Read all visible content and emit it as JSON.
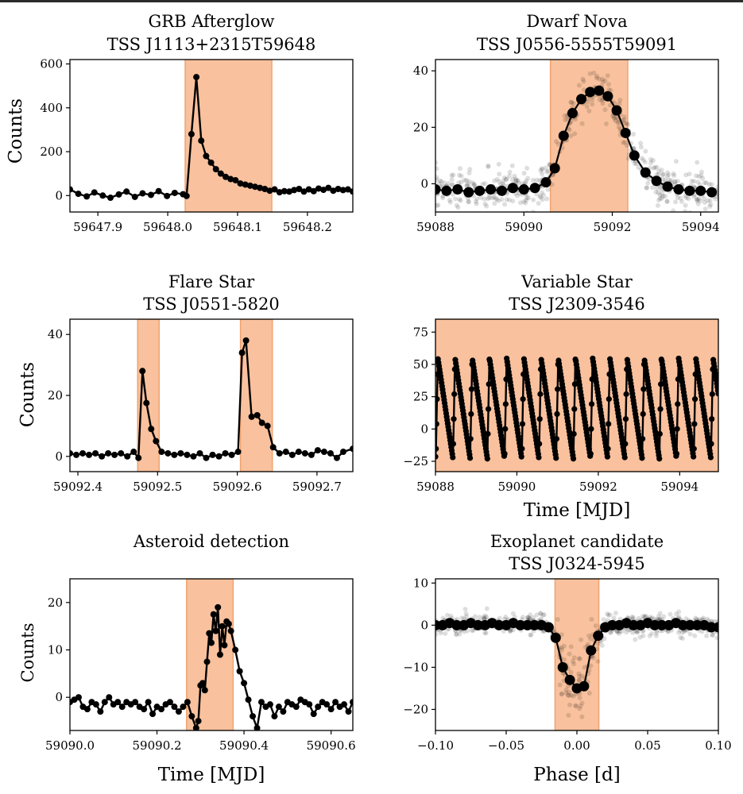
{
  "figure_title": "",
  "chart_data": [
    {
      "type": "line",
      "title": "GRB Afterglow",
      "subtitle": "TSS J1113+2315T59648",
      "xlabel": "",
      "ylabel": "Counts",
      "xlim": [
        59647.86,
        59648.265
      ],
      "ylim": [
        -75,
        620
      ],
      "xticks": [
        59647.9,
        59648.0,
        59648.1,
        59648.2
      ],
      "xtick_labels": [
        "59647.9",
        "59648.0",
        "59648.1",
        "59648.2"
      ],
      "yticks": [
        0,
        200,
        400,
        600
      ],
      "ytick_labels": [
        "0",
        "200",
        "400",
        "600"
      ],
      "highlight": [
        [
          59648.025,
          59648.149
        ]
      ],
      "series": [
        {
          "name": "counts",
          "style": "line-dots",
          "x": [
            59647.86,
            59647.872,
            59647.884,
            59647.895,
            59647.907,
            59647.918,
            59647.93,
            59647.941,
            59647.953,
            59647.964,
            59647.976,
            59647.987,
            59647.999,
            59648.01,
            59648.022,
            59648.027,
            59648.034,
            59648.041,
            59648.048,
            59648.055,
            59648.062,
            59648.069,
            59648.076,
            59648.083,
            59648.09,
            59648.097,
            59648.104,
            59648.111,
            59648.118,
            59648.125,
            59648.132,
            59648.139,
            59648.146,
            59648.153,
            59648.16,
            59648.167,
            59648.174,
            59648.181,
            59648.188,
            59648.195,
            59648.202,
            59648.209,
            59648.216,
            59648.223,
            59648.23,
            59648.237,
            59648.244,
            59648.251,
            59648.258,
            59648.265
          ],
          "y": [
            28,
            8,
            -4,
            14,
            0,
            -10,
            5,
            18,
            -6,
            10,
            3,
            20,
            -2,
            12,
            6,
            -2,
            280,
            540,
            250,
            180,
            150,
            120,
            100,
            85,
            75,
            70,
            55,
            50,
            45,
            40,
            35,
            30,
            22,
            28,
            15,
            20,
            18,
            25,
            30,
            18,
            28,
            20,
            32,
            26,
            35,
            22,
            30,
            25,
            28,
            18
          ]
        }
      ]
    },
    {
      "type": "line",
      "title": "Dwarf Nova",
      "subtitle": "TSS J0556-5555T59091",
      "xlabel": "",
      "ylabel": "",
      "xlim": [
        59088,
        59094.4
      ],
      "ylim": [
        -10,
        44
      ],
      "xticks": [
        59088,
        59090,
        59092,
        59094
      ],
      "xtick_labels": [
        "59088",
        "59090",
        "59092",
        "59094"
      ],
      "yticks": [
        0,
        20,
        40
      ],
      "ytick_labels": [
        "0",
        "20",
        "40"
      ],
      "highlight": [
        [
          59090.6,
          59092.35
        ]
      ],
      "series": [
        {
          "name": "binned",
          "style": "line-bigdots",
          "x": [
            59088.0,
            59088.25,
            59088.5,
            59088.75,
            59089.0,
            59089.25,
            59089.5,
            59089.75,
            59090.0,
            59090.25,
            59090.5,
            59090.7,
            59090.9,
            59091.1,
            59091.3,
            59091.5,
            59091.7,
            59091.9,
            59092.1,
            59092.3,
            59092.5,
            59092.75,
            59093.0,
            59093.25,
            59093.5,
            59093.75,
            59094.0,
            59094.25
          ],
          "y": [
            -2,
            -2.5,
            -2,
            -3,
            -2.5,
            -2,
            -2.5,
            -1.5,
            -2,
            -1.5,
            0.5,
            5.5,
            17,
            25,
            30,
            32.5,
            33,
            31,
            26,
            18,
            10,
            4,
            1,
            -1,
            -2,
            -2.5,
            -2.5,
            -3
          ]
        }
      ],
      "scatter": {
        "name": "raw",
        "count": 520,
        "noise": 3.5,
        "source": "binned"
      }
    },
    {
      "type": "line",
      "title": "Flare Star",
      "subtitle": "TSS J0551-5820",
      "xlabel": "",
      "ylabel": "Counts",
      "xlim": [
        59092.39,
        59092.745
      ],
      "ylim": [
        -5,
        45
      ],
      "xticks": [
        59092.4,
        59092.5,
        59092.6,
        59092.7
      ],
      "xtick_labels": [
        "59092.4",
        "59092.5",
        "59092.6",
        "59092.7"
      ],
      "yticks": [
        0,
        20,
        40
      ],
      "ytick_labels": [
        "0",
        "20",
        "40"
      ],
      "highlight": [
        [
          59092.475,
          59092.502
        ],
        [
          59092.604,
          59092.644
        ]
      ],
      "series": [
        {
          "name": "counts",
          "style": "line-dots",
          "x": [
            59092.39,
            59092.398,
            59092.406,
            59092.414,
            59092.422,
            59092.43,
            59092.438,
            59092.446,
            59092.454,
            59092.462,
            59092.47,
            59092.476,
            59092.481,
            59092.486,
            59092.492,
            59092.498,
            59092.505,
            59092.513,
            59092.521,
            59092.529,
            59092.537,
            59092.545,
            59092.553,
            59092.561,
            59092.569,
            59092.577,
            59092.585,
            59092.593,
            59092.601,
            59092.606,
            59092.611,
            59092.618,
            59092.625,
            59092.631,
            59092.638,
            59092.645,
            59092.653,
            59092.661,
            59092.669,
            59092.677,
            59092.685,
            59092.693,
            59092.701,
            59092.709,
            59092.717,
            59092.725,
            59092.733,
            59092.745
          ],
          "y": [
            1,
            0.5,
            1,
            0.5,
            1,
            0,
            1,
            0.5,
            1,
            0,
            1.5,
            -0.5,
            28,
            17.5,
            9,
            5,
            1.5,
            1,
            0.5,
            1,
            0.5,
            0,
            1,
            -0.5,
            0.5,
            0,
            1,
            0.5,
            1.5,
            34,
            38,
            13,
            13.5,
            11,
            10,
            3,
            1,
            1.5,
            0.5,
            1.5,
            1,
            0.5,
            2,
            1.5,
            1,
            -0.5,
            1.5,
            2.5
          ]
        }
      ]
    },
    {
      "type": "line",
      "title": "Variable Star",
      "subtitle": "TSS J2309-3546",
      "xlabel": "Time [MJD]",
      "ylabel": "",
      "xlim": [
        59088,
        59094.95
      ],
      "ylim": [
        -33,
        85
      ],
      "xticks": [
        59088,
        59090,
        59092,
        59094
      ],
      "xtick_labels": [
        "59088",
        "59090",
        "59092",
        "59094"
      ],
      "yticks": [
        -25,
        0,
        25,
        50,
        75
      ],
      "ytick_labels": [
        "−25",
        "0",
        "25",
        "50",
        "75"
      ],
      "highlight": [
        [
          59088,
          59094.95
        ]
      ],
      "series": [
        {
          "name": "counts",
          "style": "line-dots-dense",
          "period": 0.4225,
          "phase0": 59088.43,
          "max": 55,
          "min": -23,
          "rise_fraction": 0.12
        }
      ]
    },
    {
      "type": "line",
      "title": "Asteroid detection",
      "subtitle": "",
      "xlabel": "Time [MJD]",
      "ylabel": "Counts",
      "xlim": [
        59090.0,
        59090.65
      ],
      "ylim": [
        -7,
        25
      ],
      "xticks": [
        59090.0,
        59090.2,
        59090.4,
        59090.6
      ],
      "xtick_labels": [
        "59090.0",
        "59090.2",
        "59090.4",
        "59090.6"
      ],
      "yticks": [
        0,
        10,
        20
      ],
      "ytick_labels": [
        "0",
        "10",
        "20"
      ],
      "highlight": [
        [
          59090.268,
          59090.375
        ]
      ],
      "series": [
        {
          "name": "counts",
          "style": "line-dots",
          "x": [
            59090.0,
            59090.01,
            59090.02,
            59090.03,
            59090.04,
            59090.05,
            59090.06,
            59090.07,
            59090.08,
            59090.09,
            59090.1,
            59090.11,
            59090.12,
            59090.13,
            59090.14,
            59090.15,
            59090.16,
            59090.17,
            59090.18,
            59090.19,
            59090.2,
            59090.21,
            59090.22,
            59090.23,
            59090.24,
            59090.25,
            59090.26,
            59090.27,
            59090.28,
            59090.29,
            59090.295,
            59090.3,
            59090.305,
            59090.31,
            59090.315,
            59090.32,
            59090.325,
            59090.33,
            59090.335,
            59090.34,
            59090.345,
            59090.35,
            59090.355,
            59090.36,
            59090.365,
            59090.37,
            59090.38,
            59090.39,
            59090.4,
            59090.41,
            59090.42,
            59090.43,
            59090.44,
            59090.45,
            59090.46,
            59090.47,
            59090.48,
            59090.49,
            59090.5,
            59090.51,
            59090.52,
            59090.53,
            59090.54,
            59090.55,
            59090.56,
            59090.57,
            59090.58,
            59090.59,
            59090.6,
            59090.61,
            59090.62,
            59090.63,
            59090.64,
            59090.65
          ],
          "y": [
            -1,
            -0.5,
            0,
            -2,
            -2.5,
            -1,
            -1.5,
            -3,
            -1,
            0,
            -1.5,
            -1,
            -2,
            -1,
            -1.5,
            -1,
            -2,
            -2.5,
            -1,
            -3.5,
            -2,
            -2.5,
            -1.5,
            -1,
            -2,
            -3,
            -2,
            -1,
            -4,
            -6.5,
            -5,
            2.5,
            3,
            1.5,
            7.5,
            13.5,
            11.5,
            17.5,
            14,
            19,
            9,
            15,
            11,
            16,
            15.5,
            14,
            10,
            5.5,
            3,
            -0.5,
            -4,
            -6.5,
            -1,
            -2,
            -1.5,
            -4,
            -2,
            -3,
            -1,
            -1.5,
            -2,
            -0.5,
            -1,
            -1.5,
            -3.5,
            -2,
            -1,
            -1.5,
            -2.5,
            -1,
            -2,
            -1.5,
            -3,
            -1
          ]
        }
      ]
    },
    {
      "type": "line",
      "title": "Exoplanet candidate",
      "subtitle": "TSS J0324-5945",
      "xlabel": "Phase [d]",
      "ylabel": "",
      "xlim": [
        -0.1,
        0.1
      ],
      "ylim": [
        -25,
        11
      ],
      "xticks": [
        -0.1,
        -0.05,
        0.0,
        0.05,
        0.1
      ],
      "xtick_labels": [
        "−0.10",
        "−0.05",
        "0.00",
        "0.05",
        "0.10"
      ],
      "yticks": [
        -20,
        -10,
        0,
        10
      ],
      "ytick_labels": [
        "−20",
        "−10",
        "0",
        "10"
      ],
      "highlight": [
        [
          -0.0155,
          0.0155
        ]
      ],
      "series": [
        {
          "name": "binned",
          "style": "line-bigdots",
          "x": [
            -0.1,
            -0.095,
            -0.09,
            -0.085,
            -0.08,
            -0.075,
            -0.07,
            -0.065,
            -0.06,
            -0.055,
            -0.05,
            -0.045,
            -0.04,
            -0.035,
            -0.03,
            -0.025,
            -0.02,
            -0.015,
            -0.01,
            -0.005,
            0.0,
            0.005,
            0.01,
            0.015,
            0.02,
            0.025,
            0.03,
            0.035,
            0.04,
            0.045,
            0.05,
            0.055,
            0.06,
            0.065,
            0.07,
            0.075,
            0.08,
            0.085,
            0.09,
            0.095,
            0.1
          ],
          "y": [
            0,
            0,
            0.5,
            0,
            0,
            0.5,
            0,
            0,
            0.5,
            0,
            0,
            0.5,
            0,
            0,
            0,
            0,
            -0.5,
            -3,
            -10,
            -13,
            -15,
            -14.5,
            -6,
            -2.5,
            -0.5,
            0,
            0,
            0.5,
            0,
            0,
            0.5,
            0,
            0,
            0,
            0.5,
            0,
            0,
            0,
            0,
            -0.5,
            -0.5
          ]
        }
      ],
      "scatter": {
        "name": "raw",
        "count": 600,
        "noise": 1.2,
        "source": "binned",
        "wide_noise_range": [
          -0.015,
          0.015
        ],
        "wide_noise": 4.5
      }
    }
  ],
  "ui": {
    "highlight_color": "#f9c19d",
    "highlight_edge": "#f0a36f",
    "line_color": "#000000",
    "scatter_color": "#000000"
  }
}
